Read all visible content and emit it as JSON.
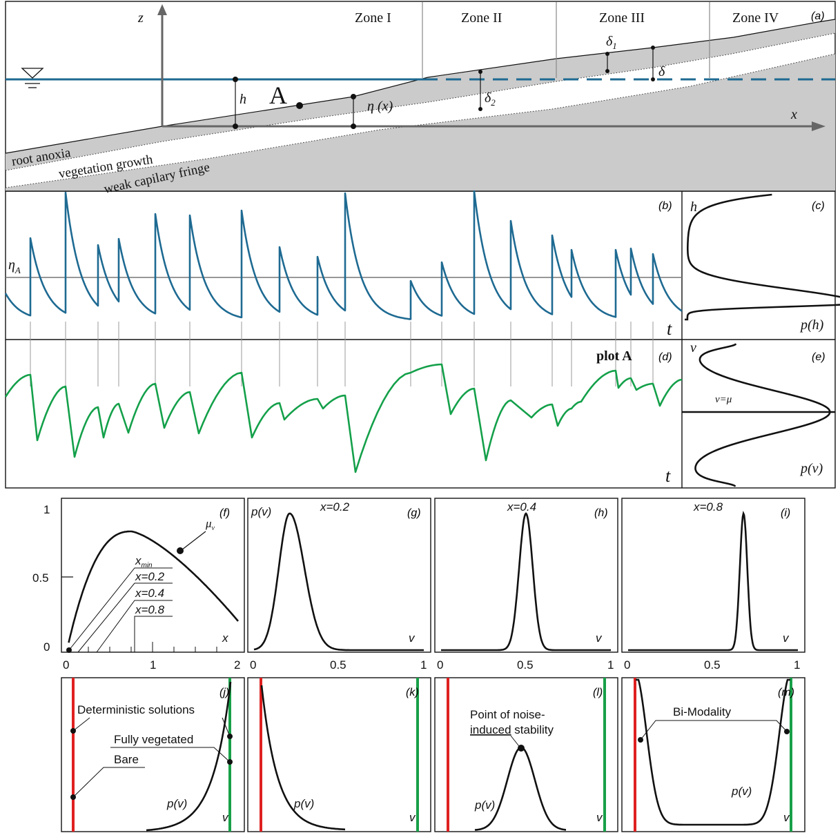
{
  "colors": {
    "water": "#1e6a92",
    "vegetation": "#14a04a",
    "soil_gray": "#cbcbcb",
    "bare_red": "#e02020",
    "veg_green": "#18a048",
    "ink": "#111111"
  },
  "panel_a": {
    "label": "(a)",
    "zones": [
      "Zone I",
      "Zone II",
      "Zone III",
      "Zone IV"
    ],
    "axis_z": "z",
    "axis_x": "x",
    "h_label": "h",
    "point_label": "A",
    "eta_label": "η (x)",
    "delta1": "δ",
    "delta1_sub": "1",
    "delta2": "δ",
    "delta2_sub": "2",
    "delta": "δ",
    "layers": [
      "root anoxia",
      "vegetation growth",
      "weak capilary fringe"
    ]
  },
  "panel_b": {
    "label": "(b)",
    "eta_label": "η",
    "eta_sub": "A",
    "t_label": "t"
  },
  "panel_c": {
    "label": "(c)",
    "y_label": "h",
    "x_label": "p(h)"
  },
  "panel_d": {
    "label": "(d)",
    "title": "plot A"
  },
  "panel_e": {
    "label": "(e)",
    "y_label": "v",
    "x_label": "p(v)",
    "t_label": "t",
    "mu_label": "v=μ"
  },
  "panel_f": {
    "label": "(f)",
    "x_label": "x",
    "y_ticks": [
      "1",
      "0.5",
      "0"
    ],
    "x_ticks": [
      "0",
      "1",
      "2"
    ],
    "mu_label": "μ",
    "mu_sub": "v",
    "annotations": [
      "x",
      "x=0.2",
      "x=0.4",
      "x=0.8"
    ],
    "xmin_sub": "min"
  },
  "panel_g": {
    "label": "(g)",
    "title": "x=0.2",
    "y_label": "p(v)",
    "x_label": "v"
  },
  "panel_h": {
    "label": "(h)",
    "title": "x=0.4",
    "x_label": "v"
  },
  "panel_i": {
    "label": "(i)",
    "title": "x=0.8",
    "x_label": "v"
  },
  "shared_v_ticks": [
    "0",
    "0.5",
    "1"
  ],
  "panel_j": {
    "label": "(j)",
    "annotations": [
      "Deterministic solutions",
      "Fully vegetated",
      "Bare"
    ],
    "y_label": "p(v)",
    "x_label": "v"
  },
  "panel_k": {
    "label": "(k)",
    "y_label": "p(v)",
    "x_label": "v"
  },
  "panel_l": {
    "label": "(l)",
    "annotation_line1": "Point of noise-",
    "annotation_line2_u": "induced",
    "annotation_line2_rest": " stability",
    "y_label": "p(v)",
    "x_label": "v"
  },
  "panel_m": {
    "label": "(m)",
    "annotation": "Bi-Modality",
    "y_label": "p(v)",
    "x_label": "v"
  }
}
